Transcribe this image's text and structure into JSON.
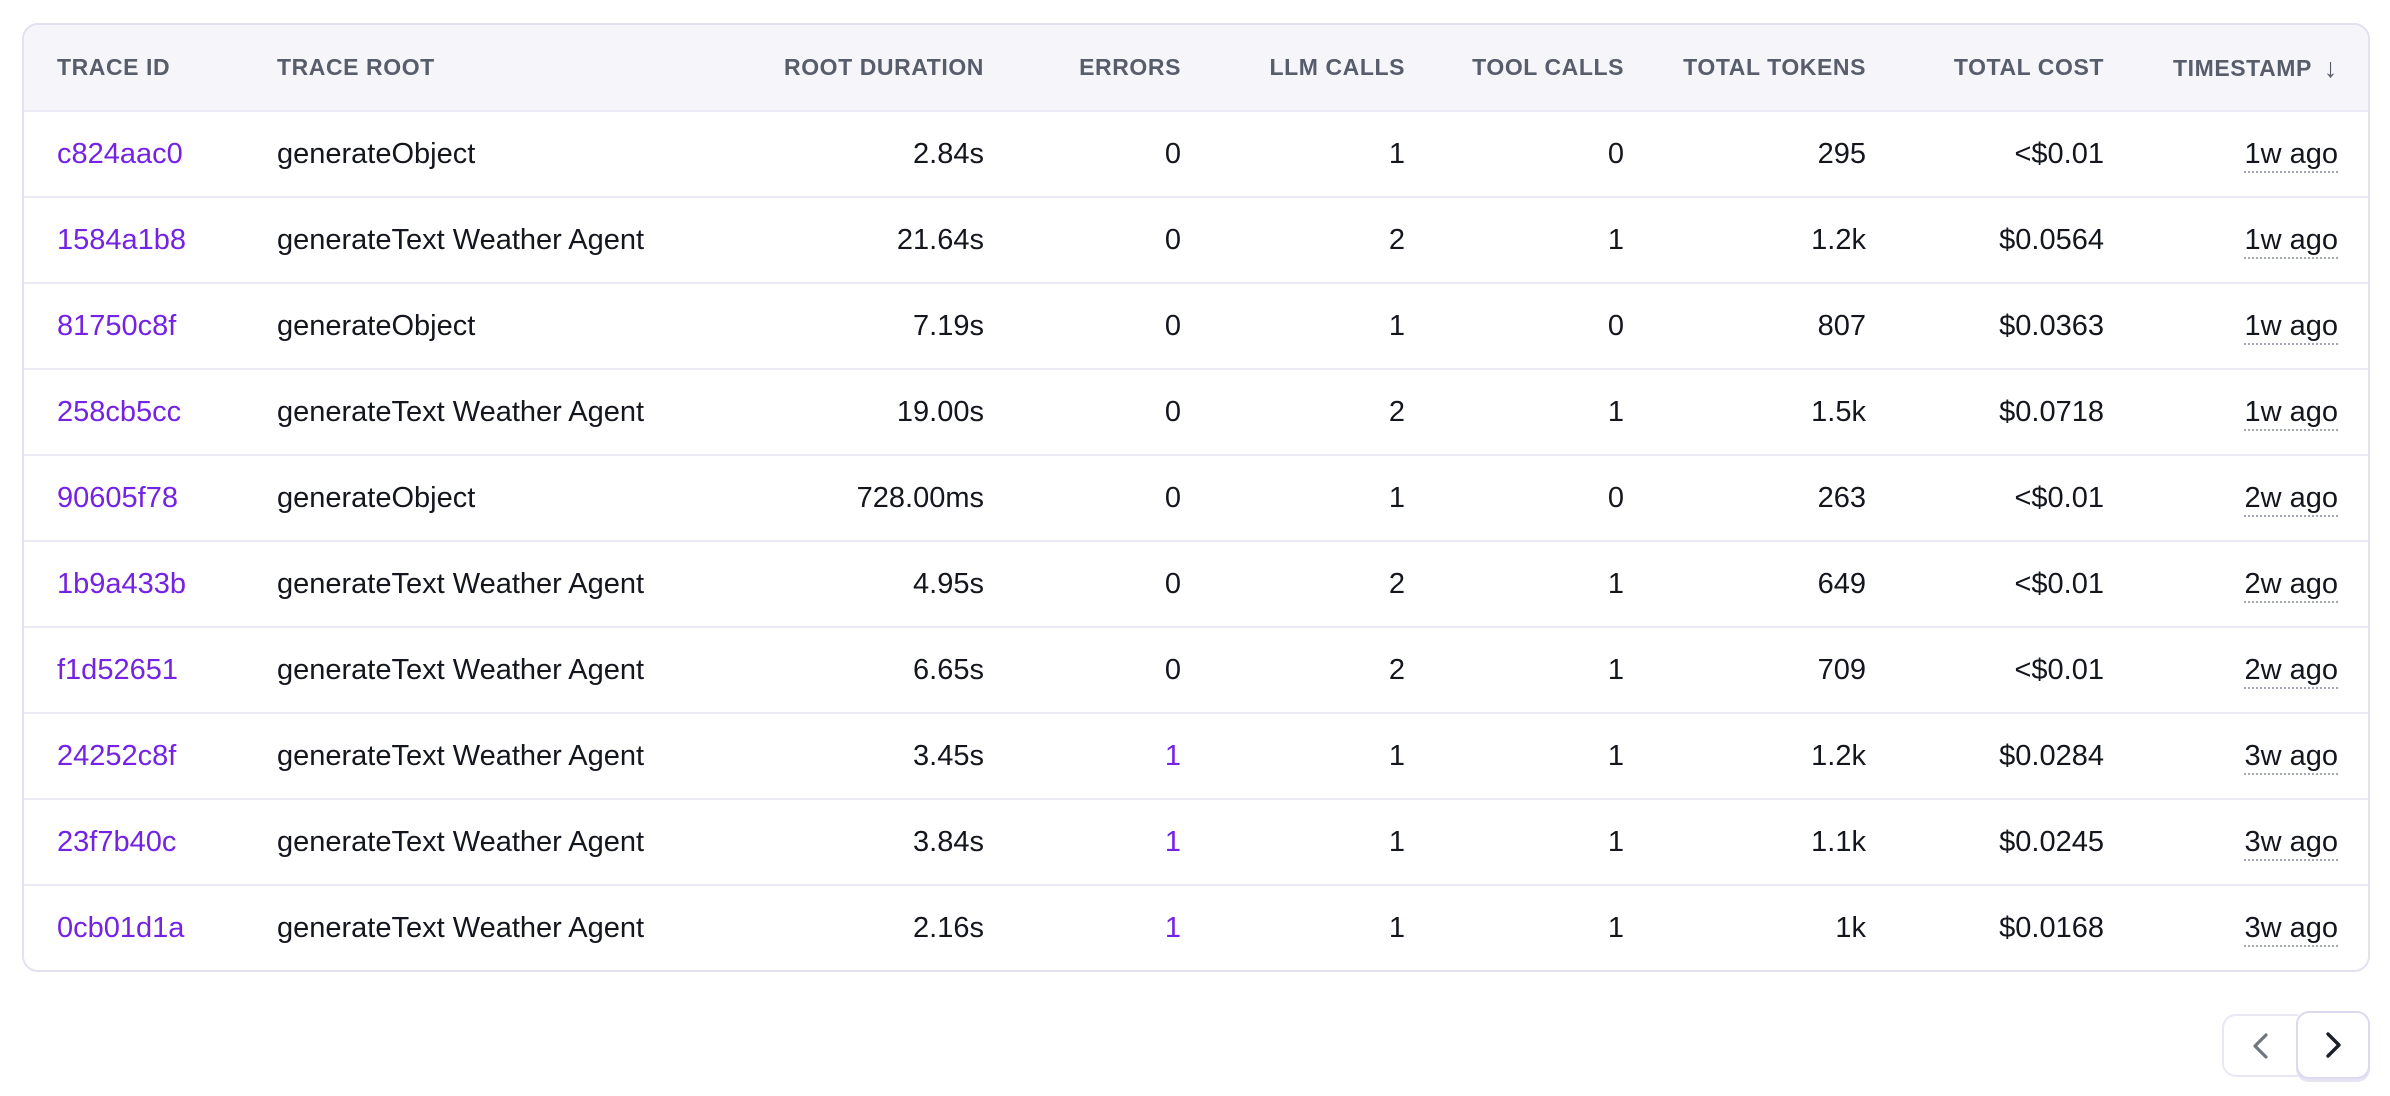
{
  "colors": {
    "accent": "#7422E3",
    "header_bg": "#F6F5F9",
    "header_text": "#585D6C",
    "body_text": "#14161E",
    "card_border": "#E3E0F0",
    "row_divider": "#ECEAF4"
  },
  "icons": {
    "sort_desc": "arrow-down",
    "prev": "chevron-left",
    "next": "chevron-right"
  },
  "table": {
    "sort_desc_glyph": "↓",
    "columns": [
      {
        "label": "TRACE ID"
      },
      {
        "label": "TRACE ROOT"
      },
      {
        "label": "ROOT DURATION"
      },
      {
        "label": "ERRORS"
      },
      {
        "label": "LLM CALLS"
      },
      {
        "label": "TOOL CALLS"
      },
      {
        "label": "TOTAL TOKENS"
      },
      {
        "label": "TOTAL COST"
      },
      {
        "label": "TIMESTAMP",
        "sort": "desc"
      }
    ],
    "rows": [
      {
        "trace_id": "c824aac0",
        "trace_root": "generateObject",
        "root_duration": "2.84s",
        "errors": "0",
        "llm_calls": "1",
        "tool_calls": "0",
        "total_tokens": "295",
        "total_cost": "<$0.01",
        "timestamp": "1w ago"
      },
      {
        "trace_id": "1584a1b8",
        "trace_root": "generateText Weather Agent",
        "root_duration": "21.64s",
        "errors": "0",
        "llm_calls": "2",
        "tool_calls": "1",
        "total_tokens": "1.2k",
        "total_cost": "$0.0564",
        "timestamp": "1w ago"
      },
      {
        "trace_id": "81750c8f",
        "trace_root": "generateObject",
        "root_duration": "7.19s",
        "errors": "0",
        "llm_calls": "1",
        "tool_calls": "0",
        "total_tokens": "807",
        "total_cost": "$0.0363",
        "timestamp": "1w ago"
      },
      {
        "trace_id": "258cb5cc",
        "trace_root": "generateText Weather Agent",
        "root_duration": "19.00s",
        "errors": "0",
        "llm_calls": "2",
        "tool_calls": "1",
        "total_tokens": "1.5k",
        "total_cost": "$0.0718",
        "timestamp": "1w ago"
      },
      {
        "trace_id": "90605f78",
        "trace_root": "generateObject",
        "root_duration": "728.00ms",
        "errors": "0",
        "llm_calls": "1",
        "tool_calls": "0",
        "total_tokens": "263",
        "total_cost": "<$0.01",
        "timestamp": "2w ago"
      },
      {
        "trace_id": "1b9a433b",
        "trace_root": "generateText Weather Agent",
        "root_duration": "4.95s",
        "errors": "0",
        "llm_calls": "2",
        "tool_calls": "1",
        "total_tokens": "649",
        "total_cost": "<$0.01",
        "timestamp": "2w ago"
      },
      {
        "trace_id": "f1d52651",
        "trace_root": "generateText Weather Agent",
        "root_duration": "6.65s",
        "errors": "0",
        "llm_calls": "2",
        "tool_calls": "1",
        "total_tokens": "709",
        "total_cost": "<$0.01",
        "timestamp": "2w ago"
      },
      {
        "trace_id": "24252c8f",
        "trace_root": "generateText Weather Agent",
        "root_duration": "3.45s",
        "errors": "1",
        "llm_calls": "1",
        "tool_calls": "1",
        "total_tokens": "1.2k",
        "total_cost": "$0.0284",
        "timestamp": "3w ago"
      },
      {
        "trace_id": "23f7b40c",
        "trace_root": "generateText Weather Agent",
        "root_duration": "3.84s",
        "errors": "1",
        "llm_calls": "1",
        "tool_calls": "1",
        "total_tokens": "1.1k",
        "total_cost": "$0.0245",
        "timestamp": "3w ago"
      },
      {
        "trace_id": "0cb01d1a",
        "trace_root": "generateText Weather Agent",
        "root_duration": "2.16s",
        "errors": "1",
        "llm_calls": "1",
        "tool_calls": "1",
        "total_tokens": "1k",
        "total_cost": "$0.0168",
        "timestamp": "3w ago"
      }
    ]
  }
}
